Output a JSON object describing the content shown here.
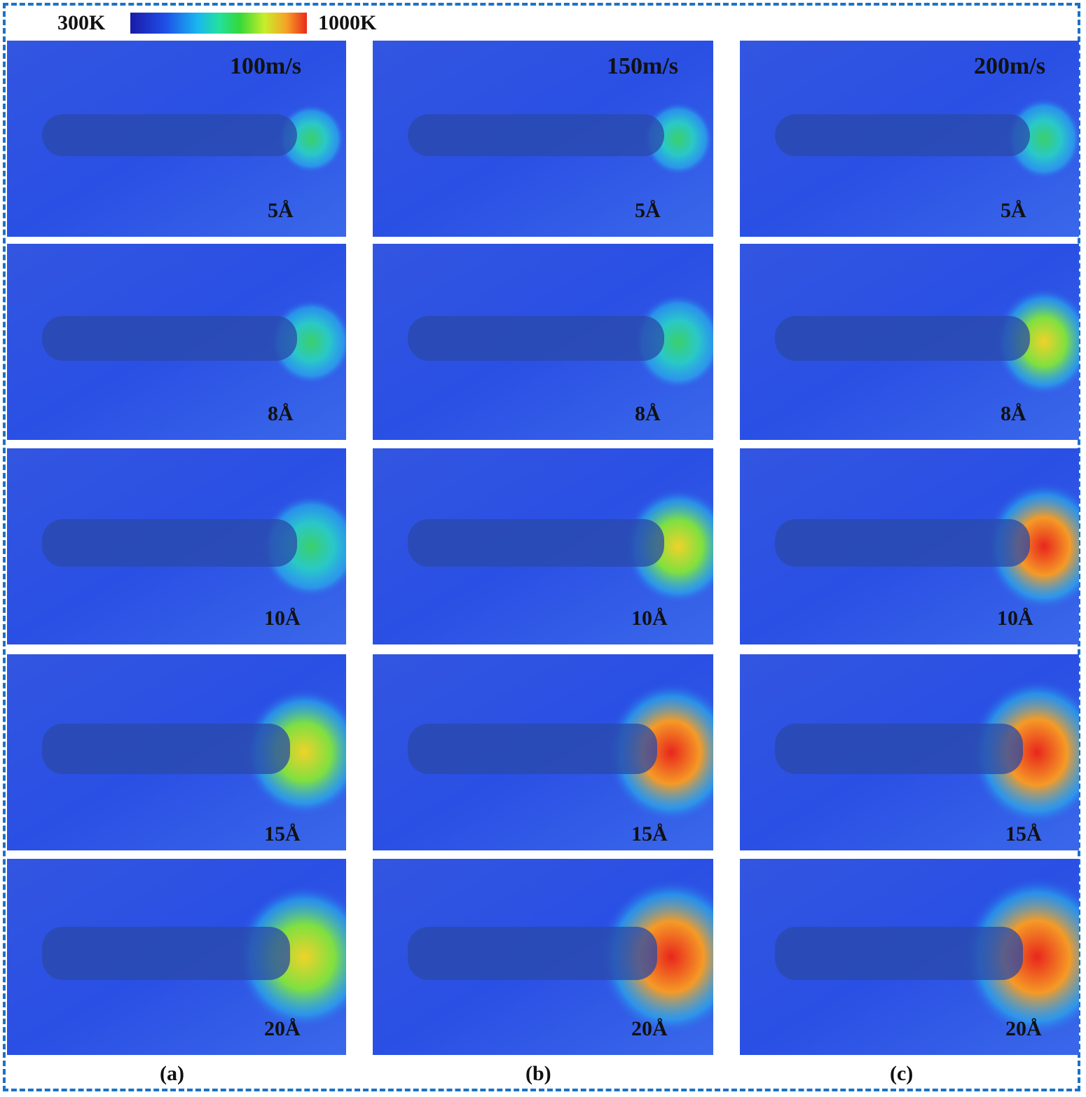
{
  "colorbar": {
    "min_label": "300K",
    "max_label": "1000K",
    "colors": [
      "#1a1aa8",
      "#1f4fe8",
      "#19b6f0",
      "#22e0a0",
      "#35d83a",
      "#c8ee2a",
      "#f5a526",
      "#ea2a1c"
    ]
  },
  "columns": [
    {
      "speed": "100m/s",
      "label": "(a)",
      "depths": [
        "5Å",
        "8Å",
        "10Å",
        "15Å",
        "20Å"
      ]
    },
    {
      "speed": "150m/s",
      "label": "(b)",
      "depths": [
        "5Å",
        "8Å",
        "10Å",
        "15Å",
        "20Å"
      ]
    },
    {
      "speed": "200m/s",
      "label": "(c)",
      "depths": [
        "5Å",
        "8Å",
        "10Å",
        "15Å",
        "20Å"
      ]
    }
  ]
}
